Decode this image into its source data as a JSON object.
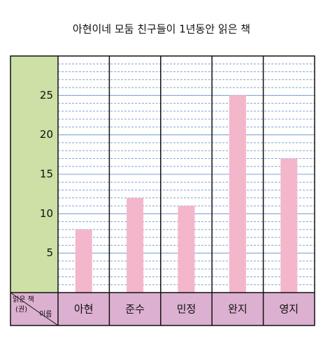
{
  "chart_data": {
    "type": "bar",
    "title": "아현이네 모둠 친구들이 1년동안 읽은 책",
    "categories": [
      "아현",
      "준수",
      "민정",
      "완지",
      "영지"
    ],
    "values": [
      8,
      12,
      11,
      25,
      17
    ],
    "color": "#f4b6cb",
    "ylabel": [
      "읽은 책",
      "(권)"
    ],
    "xlabel": "이름",
    "ylim": [
      0,
      30
    ],
    "yticks": [
      5,
      10,
      15,
      20,
      25
    ],
    "minor_step": 1,
    "grid": true
  }
}
